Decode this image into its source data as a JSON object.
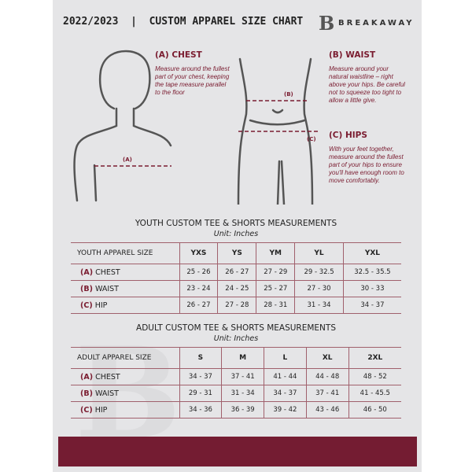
{
  "header": {
    "title": "2022/2023  |  CUSTOM APPAREL SIZE CHART",
    "logo_text": "BREAKAWAY",
    "logo_mark": "B"
  },
  "measures": {
    "chest": {
      "title": "(A) CHEST",
      "desc": "Measure around the fullest part of your chest, keeping the tape measure parallel to the floor",
      "marker": "(A)"
    },
    "waist": {
      "title": "(B) WAIST",
      "desc": "Measure around your natural waistline – right above your hips. Be careful not to squeeze too tight to allow a little give.",
      "marker": "(B)"
    },
    "hips": {
      "title": "(C) HIPS",
      "desc": "With your feet together, measure around the fullest part of your hips to ensure you'll have enough room to move comfortably.",
      "marker": "(C)"
    }
  },
  "colors": {
    "accent": "#7a1c30",
    "background": "#e5e5e7"
  },
  "youth": {
    "title": "YOUTH CUSTOM TEE & SHORTS MEASUREMENTS",
    "unit": "Unit: Inches",
    "header": [
      "YOUTH APPAREL SIZE",
      "YXS",
      "YS",
      "YM",
      "YL",
      "YXL"
    ],
    "rows": [
      {
        "code": "(A)",
        "label": "CHEST",
        "values": [
          "25 - 26",
          "26 - 27",
          "27 - 29",
          "29 - 32.5",
          "32.5 - 35.5"
        ]
      },
      {
        "code": "(B)",
        "label": "WAIST",
        "values": [
          "23 - 24",
          "24 - 25",
          "25 - 27",
          "27 - 30",
          "30 - 33"
        ]
      },
      {
        "code": "(C)",
        "label": "HIP",
        "values": [
          "26 - 27",
          "27 - 28",
          "28 - 31",
          "31 - 34",
          "34 - 37"
        ]
      }
    ]
  },
  "adult": {
    "title": "ADULT CUSTOM TEE & SHORTS MEASUREMENTS",
    "unit": "Unit: Inches",
    "header": [
      "ADULT APPAREL SIZE",
      "S",
      "M",
      "L",
      "XL",
      "2XL"
    ],
    "rows": [
      {
        "code": "(A)",
        "label": "CHEST",
        "values": [
          "34 - 37",
          "37 - 41",
          "41 - 44",
          "44 - 48",
          "48 - 52"
        ]
      },
      {
        "code": "(B)",
        "label": "WAIST",
        "values": [
          "29 - 31",
          "31 - 34",
          "34 - 37",
          "37 - 41",
          "41 - 45.5"
        ]
      },
      {
        "code": "(C)",
        "label": "HIP",
        "values": [
          "34 - 36",
          "36 - 39",
          "39 - 42",
          "43 - 46",
          "46 - 50"
        ]
      }
    ]
  }
}
